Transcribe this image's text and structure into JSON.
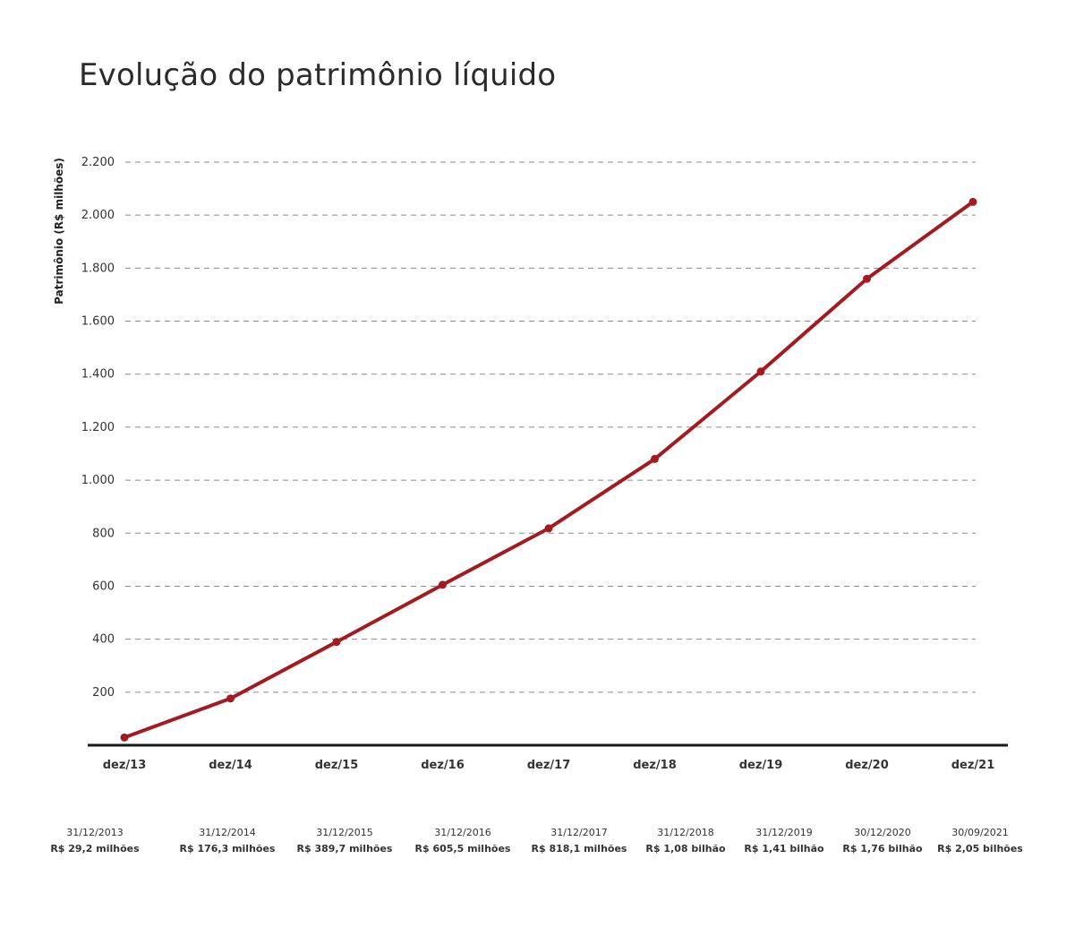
{
  "chart_data": {
    "type": "line",
    "title": "Evolução do patrimônio líquido",
    "ylabel": "Patrimônio (R$ milhões)",
    "xlabel": "",
    "ylim": [
      0,
      2200
    ],
    "yticks": [
      {
        "value": 200,
        "label": "200"
      },
      {
        "value": 400,
        "label": "400"
      },
      {
        "value": 600,
        "label": "600"
      },
      {
        "value": 800,
        "label": "800"
      },
      {
        "value": 1000,
        "label": "1.000"
      },
      {
        "value": 1200,
        "label": "1.200"
      },
      {
        "value": 1400,
        "label": "1.400"
      },
      {
        "value": 1600,
        "label": "1.600"
      },
      {
        "value": 1800,
        "label": "1.800"
      },
      {
        "value": 2000,
        "label": "2.000"
      },
      {
        "value": 2200,
        "label": "2.200"
      }
    ],
    "categories": [
      "dez/13",
      "dez/14",
      "dez/15",
      "dez/16",
      "dez/17",
      "dez/18",
      "dez/19",
      "dez/20",
      "dez/21"
    ],
    "series": [
      {
        "values": [
          29.2,
          176.3,
          389.7,
          605.5,
          818.1,
          1080,
          1410,
          1760,
          2050
        ]
      }
    ],
    "grid": true,
    "grid_style": "dashed",
    "line_color": "#a31b21",
    "highlight_color": "#c0272d",
    "annotations": [
      {
        "date": "31/12/2013",
        "value": "R$ 29,2 milhões",
        "highlight": false
      },
      {
        "date": "31/12/2014",
        "value": "R$ 176,3 milhões",
        "highlight": false
      },
      {
        "date": "31/12/2015",
        "value": "R$ 389,7 milhões",
        "highlight": false
      },
      {
        "date": "31/12/2016",
        "value": "R$ 605,5 milhões",
        "highlight": false
      },
      {
        "date": "31/12/2017",
        "value": "R$ 818,1 milhões",
        "highlight": false
      },
      {
        "date": "31/12/2018",
        "value": "R$ 1,08 bilhão",
        "highlight": false
      },
      {
        "date": "31/12/2019",
        "value": "R$ 1,41 bilhão",
        "highlight": false
      },
      {
        "date": "30/12/2020",
        "value": "R$ 1,76 bilhão",
        "highlight": false
      },
      {
        "date": "30/09/2021",
        "value": "R$ 2,05 bilhões",
        "highlight": true
      }
    ]
  }
}
